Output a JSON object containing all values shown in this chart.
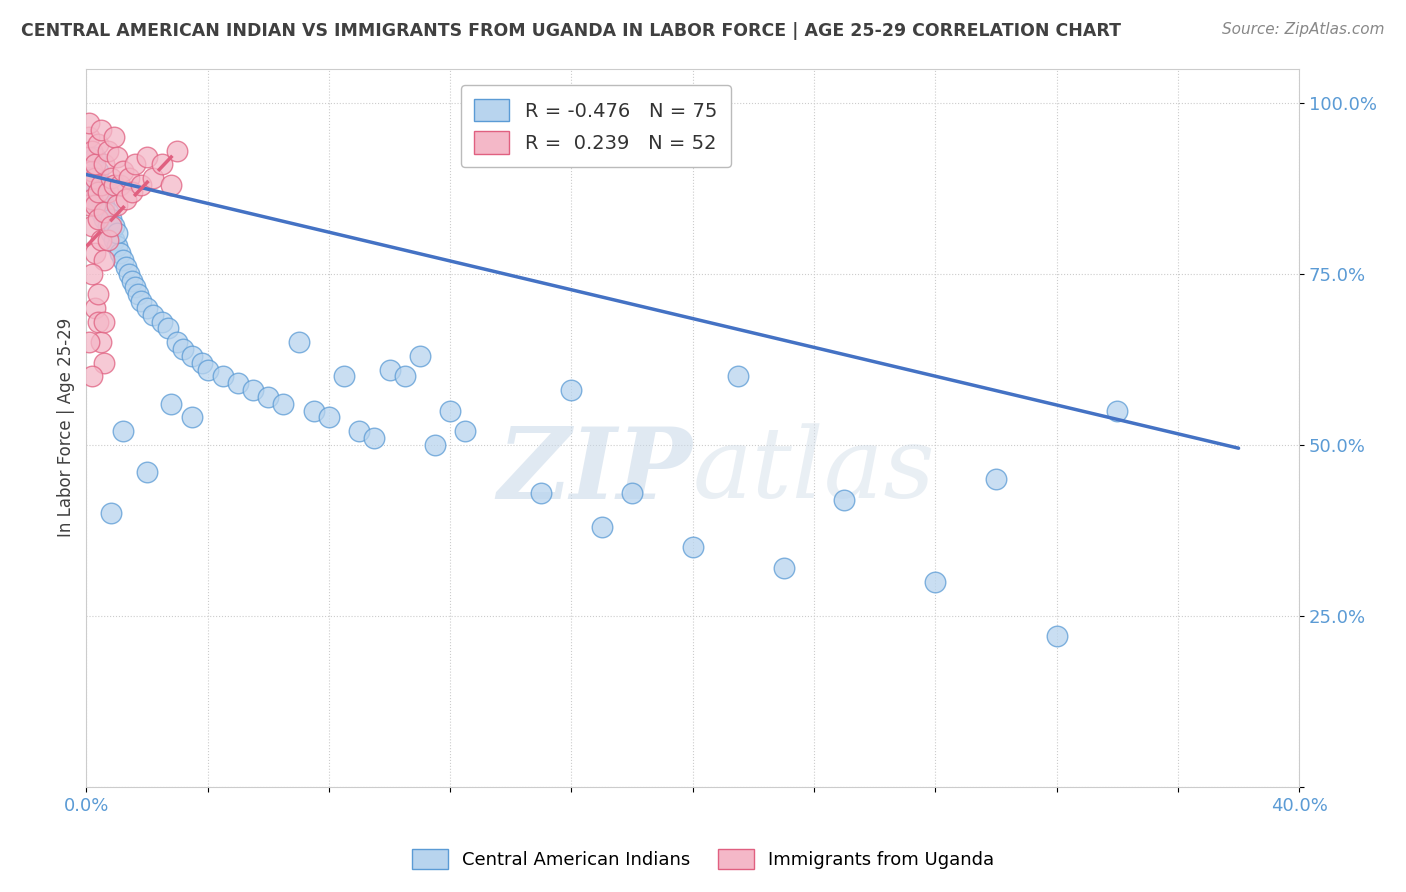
{
  "title": "CENTRAL AMERICAN INDIAN VS IMMIGRANTS FROM UGANDA IN LABOR FORCE | AGE 25-29 CORRELATION CHART",
  "source": "Source: ZipAtlas.com",
  "ylabel": "In Labor Force | Age 25-29",
  "xlim": [
    0.0,
    0.4
  ],
  "ylim": [
    0.0,
    1.05
  ],
  "R_blue": -0.476,
  "N_blue": 75,
  "R_pink": 0.239,
  "N_pink": 52,
  "blue_fill": "#b8d4ee",
  "blue_edge": "#5b9bd5",
  "pink_fill": "#f4b8c8",
  "pink_edge": "#e06080",
  "blue_line": "#4472c4",
  "pink_line": "#e06080",
  "grid_color": "#cccccc",
  "text_color": "#404040",
  "tick_color": "#5b9bd5",
  "watermark_color": "#e0e8f0",
  "background": "#ffffff",
  "blue_x": [
    0.001,
    0.001,
    0.002,
    0.002,
    0.003,
    0.003,
    0.003,
    0.004,
    0.004,
    0.004,
    0.005,
    0.005,
    0.005,
    0.006,
    0.006,
    0.006,
    0.007,
    0.007,
    0.008,
    0.008,
    0.009,
    0.009,
    0.01,
    0.01,
    0.011,
    0.012,
    0.013,
    0.014,
    0.015,
    0.016,
    0.017,
    0.018,
    0.02,
    0.022,
    0.025,
    0.027,
    0.03,
    0.032,
    0.035,
    0.038,
    0.04,
    0.045,
    0.05,
    0.055,
    0.06,
    0.065,
    0.07,
    0.075,
    0.08,
    0.085,
    0.09,
    0.095,
    0.1,
    0.105,
    0.11,
    0.115,
    0.12,
    0.125,
    0.15,
    0.16,
    0.17,
    0.18,
    0.2,
    0.215,
    0.23,
    0.25,
    0.28,
    0.3,
    0.32,
    0.34,
    0.008,
    0.012,
    0.02,
    0.028,
    0.035
  ],
  "blue_y": [
    0.88,
    0.9,
    0.87,
    0.89,
    0.86,
    0.88,
    0.92,
    0.85,
    0.87,
    0.9,
    0.84,
    0.86,
    0.88,
    0.83,
    0.85,
    0.87,
    0.82,
    0.84,
    0.81,
    0.83,
    0.8,
    0.82,
    0.79,
    0.81,
    0.78,
    0.77,
    0.76,
    0.75,
    0.74,
    0.73,
    0.72,
    0.71,
    0.7,
    0.69,
    0.68,
    0.67,
    0.65,
    0.64,
    0.63,
    0.62,
    0.61,
    0.6,
    0.59,
    0.58,
    0.57,
    0.56,
    0.65,
    0.55,
    0.54,
    0.6,
    0.52,
    0.51,
    0.61,
    0.6,
    0.63,
    0.5,
    0.55,
    0.52,
    0.43,
    0.58,
    0.38,
    0.43,
    0.35,
    0.6,
    0.32,
    0.42,
    0.3,
    0.45,
    0.22,
    0.55,
    0.4,
    0.52,
    0.46,
    0.56,
    0.54
  ],
  "pink_x": [
    0.001,
    0.001,
    0.001,
    0.001,
    0.001,
    0.002,
    0.002,
    0.002,
    0.002,
    0.003,
    0.003,
    0.003,
    0.003,
    0.004,
    0.004,
    0.004,
    0.005,
    0.005,
    0.005,
    0.006,
    0.006,
    0.006,
    0.007,
    0.007,
    0.007,
    0.008,
    0.008,
    0.009,
    0.009,
    0.01,
    0.01,
    0.011,
    0.012,
    0.013,
    0.014,
    0.015,
    0.016,
    0.018,
    0.02,
    0.022,
    0.025,
    0.028,
    0.03,
    0.002,
    0.003,
    0.004,
    0.004,
    0.005,
    0.006,
    0.006,
    0.001,
    0.002
  ],
  "pink_y": [
    0.92,
    0.88,
    0.85,
    0.95,
    0.97,
    0.9,
    0.86,
    0.82,
    0.93,
    0.89,
    0.85,
    0.91,
    0.78,
    0.87,
    0.83,
    0.94,
    0.88,
    0.8,
    0.96,
    0.84,
    0.91,
    0.77,
    0.87,
    0.93,
    0.8,
    0.89,
    0.82,
    0.88,
    0.95,
    0.85,
    0.92,
    0.88,
    0.9,
    0.86,
    0.89,
    0.87,
    0.91,
    0.88,
    0.92,
    0.89,
    0.91,
    0.88,
    0.93,
    0.75,
    0.7,
    0.68,
    0.72,
    0.65,
    0.68,
    0.62,
    0.65,
    0.6
  ],
  "blue_trendline_x": [
    0.0,
    0.38
  ],
  "blue_trendline_y": [
    0.895,
    0.495
  ],
  "pink_trendline_x": [
    0.0,
    0.03
  ],
  "pink_trendline_y": [
    0.79,
    0.93
  ]
}
